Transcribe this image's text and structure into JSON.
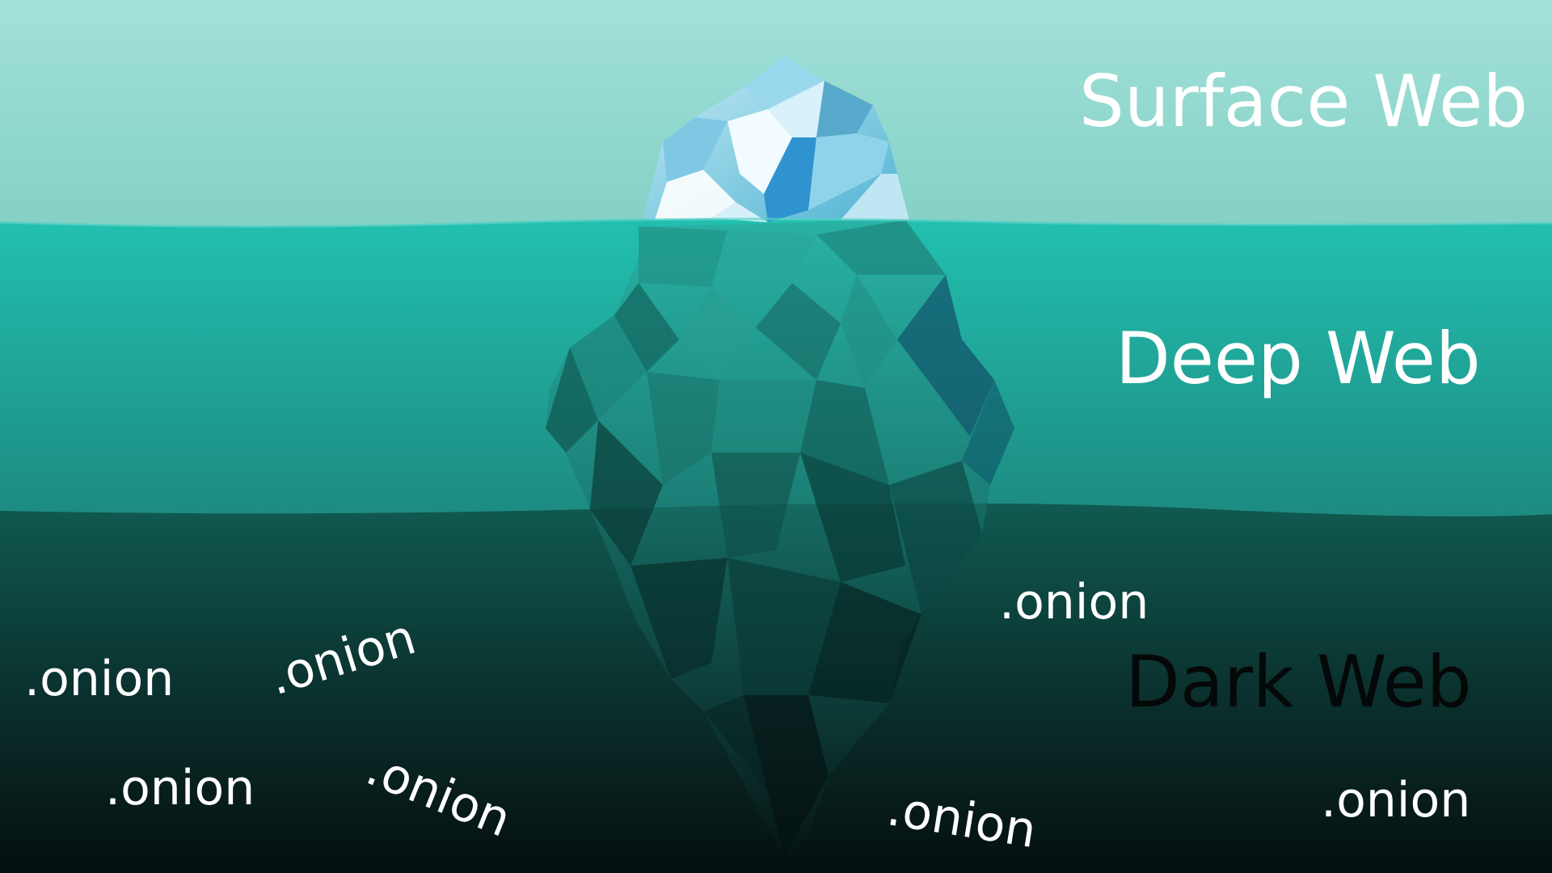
{
  "layers": {
    "surface": {
      "label": "Surface Web",
      "color": "#93d8ce"
    },
    "deep": {
      "label": "Deep Web",
      "color": "#21a89a"
    },
    "dark": {
      "label": "Dark Web",
      "color": "#0b2624"
    }
  },
  "onion_labels": [
    ".onion",
    ".onion",
    ".onion",
    ".onion",
    ".onion",
    ".onion",
    ".onion"
  ],
  "colors": {
    "ice_light": "#dff5fb",
    "ice_mid": "#6cc6dc",
    "ice_deep": "#2b8f88"
  }
}
